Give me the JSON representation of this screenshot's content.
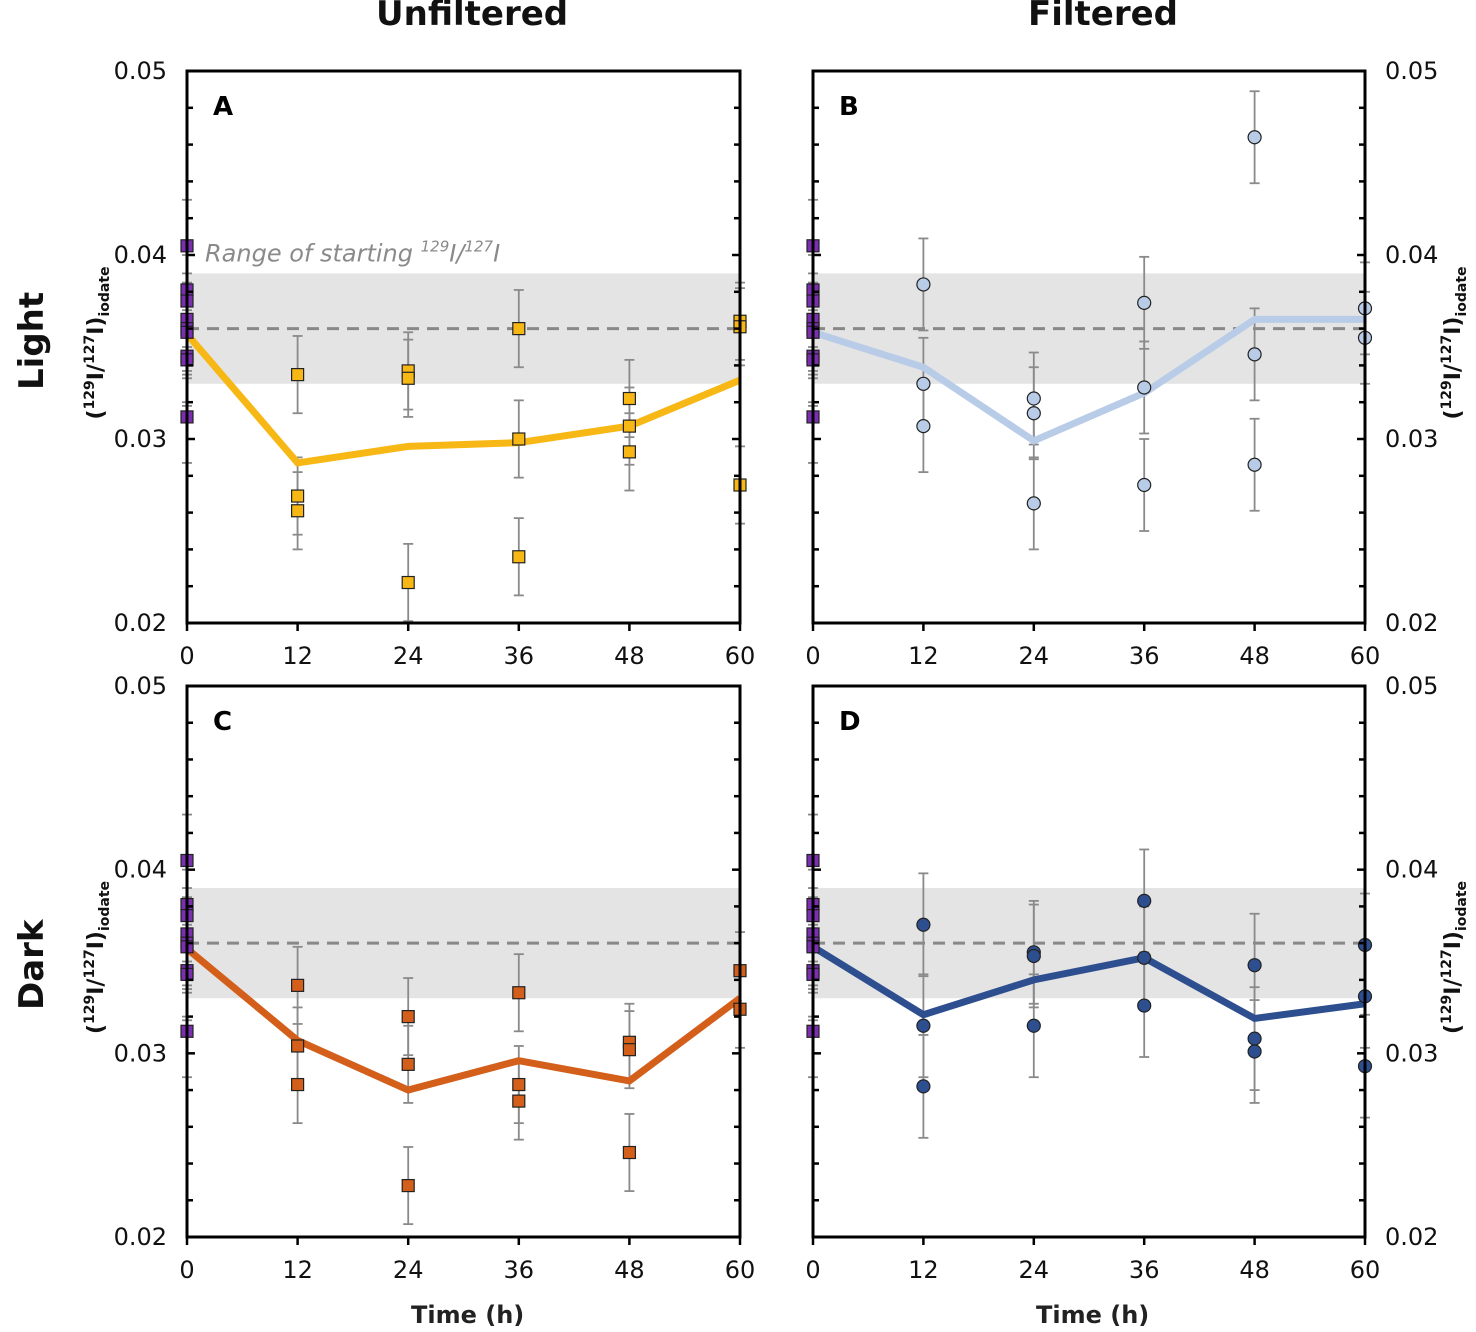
{
  "figure": {
    "col_titles": [
      "Unfiltered",
      "Filtered"
    ],
    "row_titles": [
      "Light",
      "Dark"
    ],
    "xlabel": "Time (h)",
    "ylabel_parts": {
      "open": "(",
      "sup1": "129",
      "mid": "I/",
      "sup2": "127",
      "close": "I)",
      "sub": "iodate"
    },
    "band_label_parts": {
      "text": "Range of starting ",
      "sup1": "129",
      "mid": "I/",
      "sup2": "127",
      "end": "I"
    },
    "colors": {
      "initial": "#7b2fb0",
      "band": "#e4e4e4",
      "dashed": "#888888",
      "errorbar": "#8a8a8a"
    }
  },
  "chart_data": [
    {
      "panel": "A",
      "type": "scatter+line",
      "light": "Light",
      "filter": "Unfiltered",
      "xlabel": "",
      "ylabel": "(129I/127I)iodate",
      "xlim": [
        0,
        60
      ],
      "xticks": [
        0,
        12,
        24,
        36,
        48,
        60
      ],
      "ylim": [
        0.02,
        0.05
      ],
      "yticks": [
        0.02,
        0.03,
        0.04,
        0.05
      ],
      "ytick_labels": [
        "0.02",
        "0.03",
        "0.04",
        "0.05"
      ],
      "yaxis_side": "left",
      "band": [
        0.033,
        0.039
      ],
      "dashed": 0.036,
      "band_annotation": true,
      "marker": "square",
      "color": "#f7b715",
      "initial_points": [
        0.0405,
        0.0381,
        0.0375,
        0.0365,
        0.036,
        0.0358,
        0.0345,
        0.0343,
        0.0312
      ],
      "initial_err": 0.0025,
      "points": [
        [
          12,
          0.0335
        ],
        [
          12,
          0.0269
        ],
        [
          12,
          0.0261
        ],
        [
          24,
          0.0337
        ],
        [
          24,
          0.0333
        ],
        [
          24,
          0.0222
        ],
        [
          36,
          0.036
        ],
        [
          36,
          0.03
        ],
        [
          36,
          0.0236
        ],
        [
          48,
          0.0322
        ],
        [
          48,
          0.0307
        ],
        [
          48,
          0.0293
        ],
        [
          60,
          0.0364
        ],
        [
          60,
          0.0361
        ],
        [
          60,
          0.0275
        ]
      ],
      "err": 0.0021,
      "line": [
        [
          0,
          0.0357
        ],
        [
          12,
          0.0287
        ],
        [
          24,
          0.0296
        ],
        [
          36,
          0.0298
        ],
        [
          48,
          0.0307
        ],
        [
          60,
          0.0332
        ]
      ],
      "line_color": "#f7b715"
    },
    {
      "panel": "B",
      "type": "scatter+line",
      "light": "Light",
      "filter": "Filtered",
      "xlim": [
        0,
        60
      ],
      "xticks": [
        0,
        12,
        24,
        36,
        48,
        60
      ],
      "ylim": [
        0.02,
        0.05
      ],
      "yticks": [
        0.02,
        0.03,
        0.04,
        0.05
      ],
      "ytick_labels": [
        "0.02",
        "0.03",
        "0.04",
        "0.05"
      ],
      "yaxis_side": "right",
      "band": [
        0.033,
        0.039
      ],
      "dashed": 0.036,
      "band_annotation": false,
      "marker": "circle",
      "color": "#b8cce8",
      "initial_points": [
        0.0405,
        0.0381,
        0.0375,
        0.0365,
        0.036,
        0.0358,
        0.0345,
        0.0343,
        0.0312
      ],
      "initial_err": 0.0025,
      "points": [
        [
          12,
          0.0384
        ],
        [
          12,
          0.033
        ],
        [
          12,
          0.0307
        ],
        [
          24,
          0.0322
        ],
        [
          24,
          0.0314
        ],
        [
          24,
          0.0265
        ],
        [
          36,
          0.0374
        ],
        [
          36,
          0.0328
        ],
        [
          36,
          0.0275
        ],
        [
          48,
          0.0464
        ],
        [
          48,
          0.0346
        ],
        [
          48,
          0.0286
        ],
        [
          60,
          0.0371
        ],
        [
          60,
          0.0355
        ]
      ],
      "err": 0.0025,
      "line": [
        [
          0,
          0.0358
        ],
        [
          12,
          0.0339
        ],
        [
          24,
          0.0299
        ],
        [
          36,
          0.0325
        ],
        [
          48,
          0.0365
        ],
        [
          60,
          0.0365
        ]
      ],
      "line_color": "#b8cce8"
    },
    {
      "panel": "C",
      "type": "scatter+line",
      "light": "Dark",
      "filter": "Unfiltered",
      "xlim": [
        0,
        60
      ],
      "xticks": [
        0,
        12,
        24,
        36,
        48,
        60
      ],
      "ylim": [
        0.02,
        0.05
      ],
      "yticks": [
        0.02,
        0.03,
        0.04,
        0.05
      ],
      "ytick_labels": [
        "0.02",
        "0.03",
        "0.04",
        "0.05"
      ],
      "yaxis_side": "left",
      "band": [
        0.033,
        0.039
      ],
      "dashed": 0.036,
      "band_annotation": false,
      "marker": "square",
      "color": "#d35f1b",
      "initial_points": [
        0.0405,
        0.0381,
        0.0375,
        0.0365,
        0.036,
        0.0358,
        0.0345,
        0.0343,
        0.0312
      ],
      "initial_err": 0.0025,
      "points": [
        [
          12,
          0.0337
        ],
        [
          12,
          0.0304
        ],
        [
          12,
          0.0283
        ],
        [
          24,
          0.032
        ],
        [
          24,
          0.0294
        ],
        [
          24,
          0.0228
        ],
        [
          36,
          0.0333
        ],
        [
          36,
          0.0283
        ],
        [
          36,
          0.0274
        ],
        [
          48,
          0.0306
        ],
        [
          48,
          0.0302
        ],
        [
          48,
          0.0246
        ],
        [
          60,
          0.0345
        ],
        [
          60,
          0.0324
        ]
      ],
      "err": 0.0021,
      "line": [
        [
          0,
          0.0357
        ],
        [
          12,
          0.0307
        ],
        [
          24,
          0.028
        ],
        [
          36,
          0.0296
        ],
        [
          48,
          0.0285
        ],
        [
          60,
          0.033
        ]
      ],
      "line_color": "#d35f1b"
    },
    {
      "panel": "D",
      "type": "scatter+line",
      "light": "Dark",
      "filter": "Filtered",
      "xlim": [
        0,
        60
      ],
      "xticks": [
        0,
        12,
        24,
        36,
        48,
        60
      ],
      "ylim": [
        0.02,
        0.05
      ],
      "yticks": [
        0.02,
        0.03,
        0.04,
        0.05
      ],
      "ytick_labels": [
        "0.02",
        "0.03",
        "0.04",
        "0.05"
      ],
      "yaxis_side": "right",
      "band": [
        0.033,
        0.039
      ],
      "dashed": 0.036,
      "band_annotation": false,
      "marker": "circle",
      "color": "#2e4f8f",
      "initial_points": [
        0.0405,
        0.0381,
        0.0375,
        0.0365,
        0.036,
        0.0358,
        0.0345,
        0.0343,
        0.0312
      ],
      "initial_err": 0.0025,
      "points": [
        [
          12,
          0.037
        ],
        [
          12,
          0.0315
        ],
        [
          12,
          0.0282
        ],
        [
          24,
          0.0355
        ],
        [
          24,
          0.0353
        ],
        [
          24,
          0.0315
        ],
        [
          36,
          0.0383
        ],
        [
          36,
          0.0352
        ],
        [
          36,
          0.0326
        ],
        [
          48,
          0.0348
        ],
        [
          48,
          0.0308
        ],
        [
          48,
          0.0301
        ],
        [
          60,
          0.0359
        ],
        [
          60,
          0.0331
        ],
        [
          60,
          0.0293
        ]
      ],
      "err": 0.0028,
      "line": [
        [
          0,
          0.0358
        ],
        [
          12,
          0.0321
        ],
        [
          24,
          0.034
        ],
        [
          36,
          0.0352
        ],
        [
          48,
          0.0319
        ],
        [
          60,
          0.0327
        ]
      ],
      "line_color": "#2e4f8f"
    }
  ]
}
